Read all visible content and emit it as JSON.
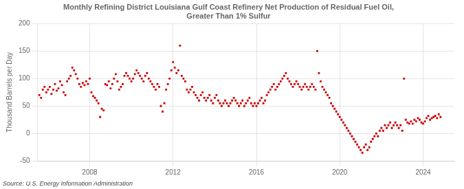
{
  "chart_data": {
    "type": "scatter",
    "title": "Monthly Refining District Louisiana Gulf Coast Refinery Net Production of Residual Fuel Oil,\nGreater Than 1% Sulfur",
    "ylabel": "Thousand Barrels per Day",
    "annotation": "Source: U.S. Energy Information Administration",
    "color": "#cc0000",
    "marker": "square",
    "grid": true,
    "xlim": [
      2005.5,
      2025.5
    ],
    "xticks": [
      2008,
      2012,
      2016,
      2020,
      2024
    ],
    "ylim": [
      -50,
      200
    ],
    "yticks": [
      -50,
      0,
      50,
      100,
      150,
      200
    ],
    "x": [
      2005.583,
      2005.667,
      2005.75,
      2005.833,
      2005.917,
      2006.0,
      2006.083,
      2006.167,
      2006.25,
      2006.333,
      2006.417,
      2006.5,
      2006.583,
      2006.667,
      2006.75,
      2006.833,
      2006.917,
      2007.0,
      2007.083,
      2007.167,
      2007.25,
      2007.333,
      2007.417,
      2007.5,
      2007.583,
      2007.667,
      2007.75,
      2007.833,
      2007.917,
      2008.0,
      2008.083,
      2008.167,
      2008.25,
      2008.333,
      2008.417,
      2008.5,
      2008.583,
      2008.667,
      2008.75,
      2008.833,
      2008.917,
      2009.0,
      2009.083,
      2009.167,
      2009.25,
      2009.333,
      2009.417,
      2009.5,
      2009.583,
      2009.667,
      2009.75,
      2009.833,
      2009.917,
      2010.0,
      2010.083,
      2010.167,
      2010.25,
      2010.333,
      2010.417,
      2010.5,
      2010.583,
      2010.667,
      2010.75,
      2010.833,
      2010.917,
      2011.0,
      2011.083,
      2011.167,
      2011.25,
      2011.333,
      2011.417,
      2011.5,
      2011.583,
      2011.667,
      2011.75,
      2011.833,
      2011.917,
      2012.0,
      2012.083,
      2012.167,
      2012.25,
      2012.333,
      2012.417,
      2012.5,
      2012.583,
      2012.667,
      2012.75,
      2012.833,
      2012.917,
      2013.0,
      2013.083,
      2013.167,
      2013.25,
      2013.333,
      2013.417,
      2013.5,
      2013.583,
      2013.667,
      2013.75,
      2013.833,
      2013.917,
      2014.0,
      2014.083,
      2014.167,
      2014.25,
      2014.333,
      2014.417,
      2014.5,
      2014.583,
      2014.667,
      2014.75,
      2014.833,
      2014.917,
      2015.0,
      2015.083,
      2015.167,
      2015.25,
      2015.333,
      2015.417,
      2015.5,
      2015.583,
      2015.667,
      2015.75,
      2015.833,
      2015.917,
      2016.0,
      2016.083,
      2016.167,
      2016.25,
      2016.333,
      2016.417,
      2016.5,
      2016.583,
      2016.667,
      2016.75,
      2016.833,
      2016.917,
      2017.0,
      2017.083,
      2017.167,
      2017.25,
      2017.333,
      2017.417,
      2017.5,
      2017.583,
      2017.667,
      2017.75,
      2017.833,
      2017.917,
      2018.0,
      2018.083,
      2018.167,
      2018.25,
      2018.333,
      2018.417,
      2018.5,
      2018.583,
      2018.667,
      2018.75,
      2018.833,
      2018.917,
      2019.0,
      2019.083,
      2019.167,
      2019.25,
      2019.333,
      2019.417,
      2019.5,
      2019.583,
      2019.667,
      2019.75,
      2019.833,
      2019.917,
      2020.0,
      2020.083,
      2020.167,
      2020.25,
      2020.333,
      2020.417,
      2020.5,
      2020.583,
      2020.667,
      2020.75,
      2020.833,
      2020.917,
      2021.0,
      2021.083,
      2021.167,
      2021.25,
      2021.333,
      2021.417,
      2021.5,
      2021.583,
      2021.667,
      2021.75,
      2021.833,
      2021.917,
      2022.0,
      2022.083,
      2022.167,
      2022.25,
      2022.333,
      2022.417,
      2022.5,
      2022.583,
      2022.667,
      2022.75,
      2022.833,
      2022.917,
      2023.0,
      2023.083,
      2023.167,
      2023.25,
      2023.333,
      2023.417,
      2023.5,
      2023.583,
      2023.667,
      2023.75,
      2023.833,
      2023.917,
      2024.0,
      2024.083,
      2024.167,
      2024.25,
      2024.333,
      2024.417,
      2024.5,
      2024.583,
      2024.667,
      2024.75,
      2024.833
    ],
    "values": [
      70,
      65,
      80,
      85,
      75,
      80,
      85,
      72,
      80,
      90,
      78,
      82,
      95,
      88,
      75,
      70,
      95,
      100,
      105,
      120,
      115,
      108,
      100,
      90,
      85,
      92,
      88,
      95,
      90,
      100,
      75,
      68,
      65,
      60,
      55,
      30,
      45,
      42,
      90,
      88,
      95,
      82,
      90,
      100,
      108,
      95,
      80,
      85,
      90,
      105,
      110,
      105,
      100,
      95,
      100,
      108,
      115,
      110,
      105,
      100,
      95,
      105,
      110,
      100,
      95,
      90,
      85,
      80,
      90,
      85,
      50,
      40,
      55,
      80,
      90,
      100,
      115,
      130,
      120,
      110,
      115,
      160,
      105,
      100,
      95,
      80,
      75,
      80,
      85,
      75,
      70,
      65,
      60,
      70,
      75,
      65,
      60,
      65,
      70,
      60,
      55,
      65,
      70,
      60,
      55,
      50,
      55,
      60,
      55,
      50,
      55,
      60,
      65,
      60,
      55,
      50,
      55,
      60,
      50,
      55,
      60,
      65,
      55,
      50,
      55,
      50,
      55,
      60,
      65,
      55,
      60,
      70,
      75,
      80,
      85,
      90,
      80,
      85,
      90,
      95,
      100,
      105,
      110,
      100,
      95,
      90,
      85,
      90,
      95,
      90,
      85,
      80,
      85,
      90,
      85,
      80,
      85,
      90,
      85,
      80,
      150,
      110,
      95,
      85,
      80,
      75,
      70,
      65,
      55,
      50,
      45,
      40,
      35,
      30,
      25,
      20,
      15,
      10,
      5,
      0,
      -5,
      -10,
      -15,
      -20,
      -25,
      -30,
      -35,
      -25,
      -20,
      -30,
      -25,
      -15,
      -10,
      -5,
      0,
      -5,
      5,
      10,
      5,
      15,
      10,
      15,
      20,
      10,
      15,
      20,
      15,
      10,
      15,
      5,
      100,
      25,
      20,
      18,
      22,
      18,
      25,
      22,
      28,
      25,
      20,
      18,
      22,
      28,
      32,
      25,
      28,
      30,
      32,
      28,
      35,
      30
    ]
  }
}
